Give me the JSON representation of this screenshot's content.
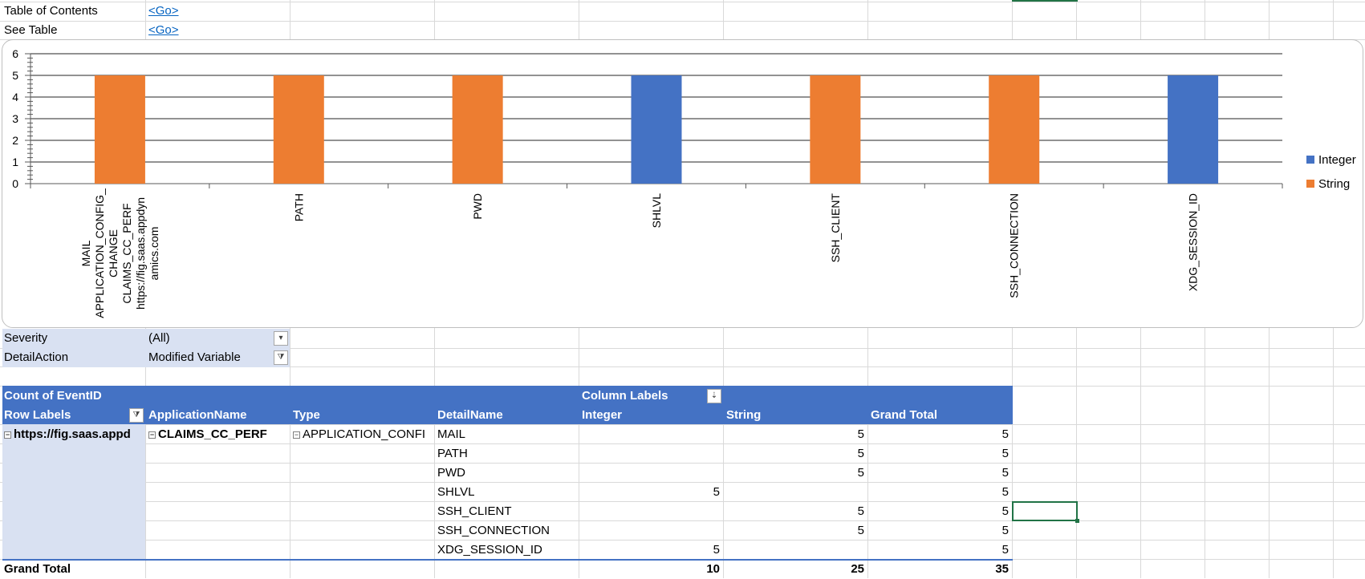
{
  "links": [
    {
      "label": "Table of Contents",
      "action": "<Go>"
    },
    {
      "label": "See Table",
      "action": "<Go>"
    }
  ],
  "filters": [
    {
      "label": "Severity",
      "value": "(All)"
    },
    {
      "label": "DetailAction",
      "value": "Modified Variable"
    }
  ],
  "pivot": {
    "measure": "Count of EventID",
    "column_labels": "Column Labels",
    "headers": {
      "row_labels": "Row Labels",
      "application": "ApplicationName",
      "type": "Type",
      "detail": "DetailName",
      "integer": "Integer",
      "string": "String",
      "grand_total": "Grand Total"
    },
    "group": {
      "row_label": "https://fig.saas.appd",
      "application": "CLAIMS_CC_PERF",
      "type": "APPLICATION_CONFI"
    },
    "rows": [
      {
        "detail": "MAIL",
        "integer": "",
        "string": "5",
        "total": "5"
      },
      {
        "detail": "PATH",
        "integer": "",
        "string": "5",
        "total": "5"
      },
      {
        "detail": "PWD",
        "integer": "",
        "string": "5",
        "total": "5"
      },
      {
        "detail": "SHLVL",
        "integer": "5",
        "string": "",
        "total": "5"
      },
      {
        "detail": "SSH_CLIENT",
        "integer": "",
        "string": "5",
        "total": "5"
      },
      {
        "detail": "SSH_CONNECTION",
        "integer": "",
        "string": "5",
        "total": "5"
      },
      {
        "detail": "XDG_SESSION_ID",
        "integer": "5",
        "string": "",
        "total": "5"
      }
    ],
    "grand_total": {
      "label": "Grand Total",
      "integer": "10",
      "string": "25",
      "total": "35"
    }
  },
  "chart_data": {
    "type": "bar",
    "categories": [
      [
        "MAIL",
        "APPLICATION_CONFIG_",
        "CHANGE",
        "CLAIMS_CC_PERF",
        "https://fig.saas.appdyn",
        "amics.com"
      ],
      [
        "PATH"
      ],
      [
        "PWD"
      ],
      [
        "SHLVL"
      ],
      [
        "SSH_CLIENT"
      ],
      [
        "SSH_CONNECTION"
      ],
      [
        "XDG_SESSION_ID"
      ]
    ],
    "series": [
      {
        "name": "Integer",
        "color": "#4472c4",
        "values": [
          null,
          null,
          null,
          5,
          null,
          null,
          5
        ]
      },
      {
        "name": "String",
        "color": "#ed7d31",
        "values": [
          5,
          5,
          5,
          null,
          5,
          5,
          null
        ]
      }
    ],
    "ylim": [
      0,
      6
    ],
    "yticks": [
      "0",
      "1",
      "2",
      "3",
      "4",
      "5",
      "6"
    ],
    "grid": true,
    "legend": "right"
  }
}
